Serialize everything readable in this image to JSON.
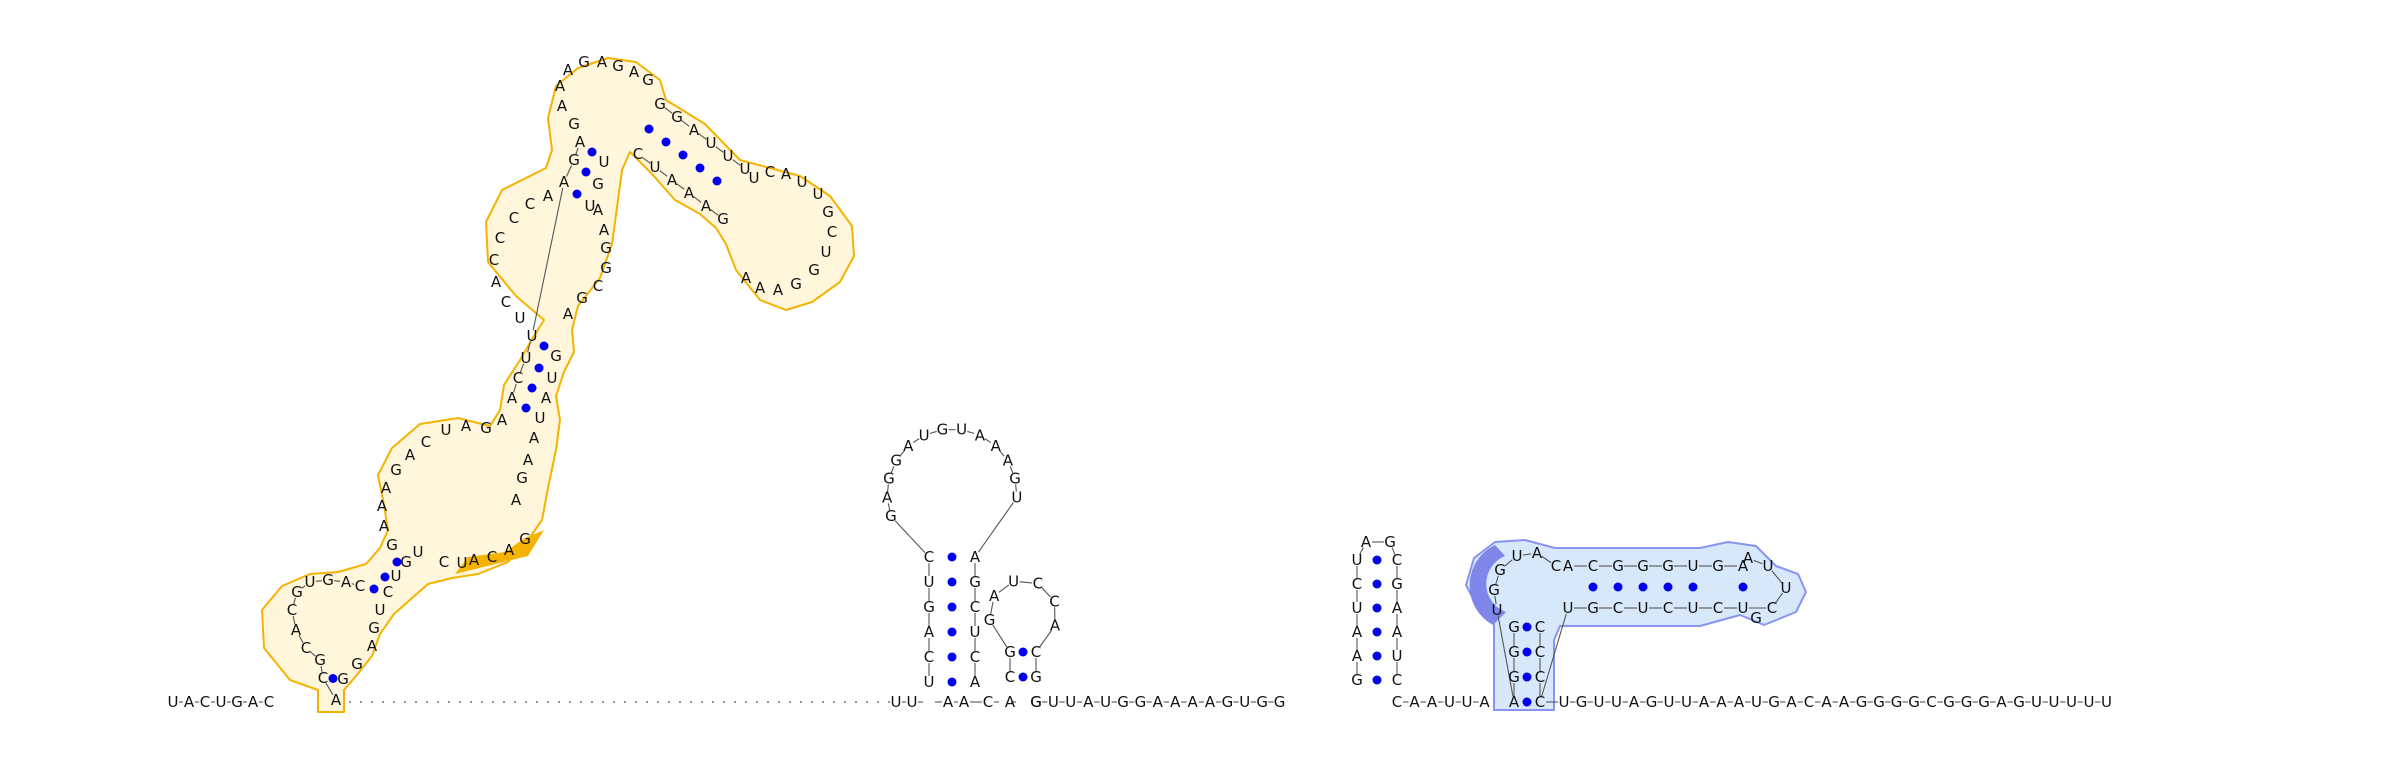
{
  "colors": {
    "orange_outline": "#f5b301",
    "orange_fill": "#fff6dc",
    "orange_highlight": "#f5b301",
    "blue_outline": "#8a93f0",
    "blue_fill": "#d6e8fa",
    "blue_highlight": "#7f86ea",
    "pair_dot": "#0000ee",
    "backbone": "#555555"
  },
  "strand": {
    "left_tail": "UACUGAC",
    "right_tail": "UGUUAGUUAAAUGACAAGGGGCGGGAGUUUUU",
    "linker_1": "GUUAUGGAAAAGUGG",
    "linker_2": "CAAUUA",
    "pre_hp1": "UU",
    "between_hp1_hp2": "AAC"
  },
  "hairpins": {
    "hp1": {
      "left_stem": "UCAGUC",
      "loop": "GAGGAUGUAAAGU",
      "right_stem": "AGCUCA",
      "loop_top": "AUGU"
    },
    "hp2": {
      "left_stem": "CG",
      "loop": "GAUCCA",
      "right_stem": "GC"
    },
    "hp3": {
      "left_stem": "GAAUCU",
      "loop": "AG",
      "right_stem": "CUAAGC"
    },
    "blue": {
      "base_left": "AGGGU",
      "loop_5p": "GUACC",
      "helix_top": "ACGGGUGAAUUCUCUCGU",
      "base_right": "CCCC"
    }
  },
  "big_domain": {
    "stem1_5p": "CA",
    "hairpin_a": "GCACGUGAC",
    "stem1_3p": "GA",
    "interior_right": "GUCU",
    "highlight_seq": "CACAG",
    "stem_mid": "GAAAGACUAGA",
    "upper_loop": "UCACCCCA",
    "stem_top": "AGAGAG",
    "terminal": "GAGAAGCAGCAAAGCUUAC",
    "hairpin_b": "UCAUUGCUGGAAA"
  }
}
